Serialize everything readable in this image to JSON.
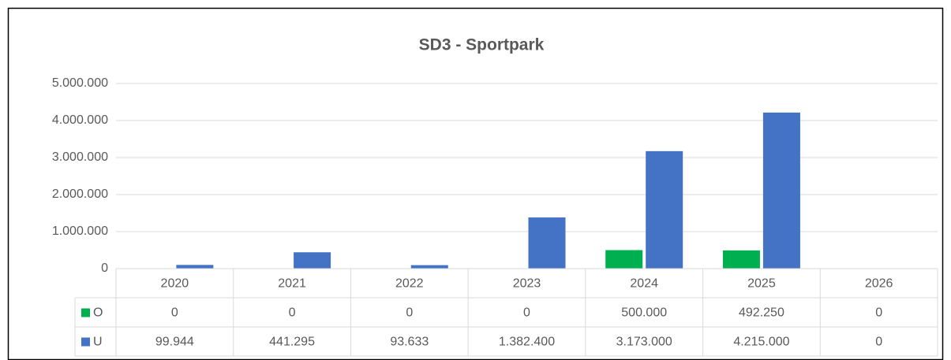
{
  "chart_data": {
    "type": "bar",
    "title": "SD3 - Sportpark",
    "categories": [
      "2020",
      "2021",
      "2022",
      "2023",
      "2024",
      "2025",
      "2026"
    ],
    "series": [
      {
        "name": "O",
        "color": "#00b050",
        "values": [
          0,
          0,
          0,
          0,
          500000,
          492250,
          0
        ],
        "value_labels": [
          "0",
          "0",
          "0",
          "0",
          "500.000",
          "492.250",
          "0"
        ]
      },
      {
        "name": "U",
        "color": "#4472c4",
        "values": [
          99944,
          441295,
          93633,
          1382400,
          3173000,
          4215000,
          0
        ],
        "value_labels": [
          "99.944",
          "441.295",
          "93.633",
          "1.382.400",
          "3.173.000",
          "4.215.000",
          "0"
        ]
      }
    ],
    "ylim": [
      0,
      5000000
    ],
    "yticks": [
      0,
      {
        "value": 1000000,
        "label": "1.000.000"
      },
      {
        "value": 2000000,
        "label": "2.000.000"
      },
      {
        "value": 3000000,
        "label": "3.000.000"
      },
      {
        "value": 4000000,
        "label": "4.000.000"
      },
      {
        "value": 5000000,
        "label": "5.000.000"
      }
    ],
    "grid": true,
    "data_table": true
  }
}
